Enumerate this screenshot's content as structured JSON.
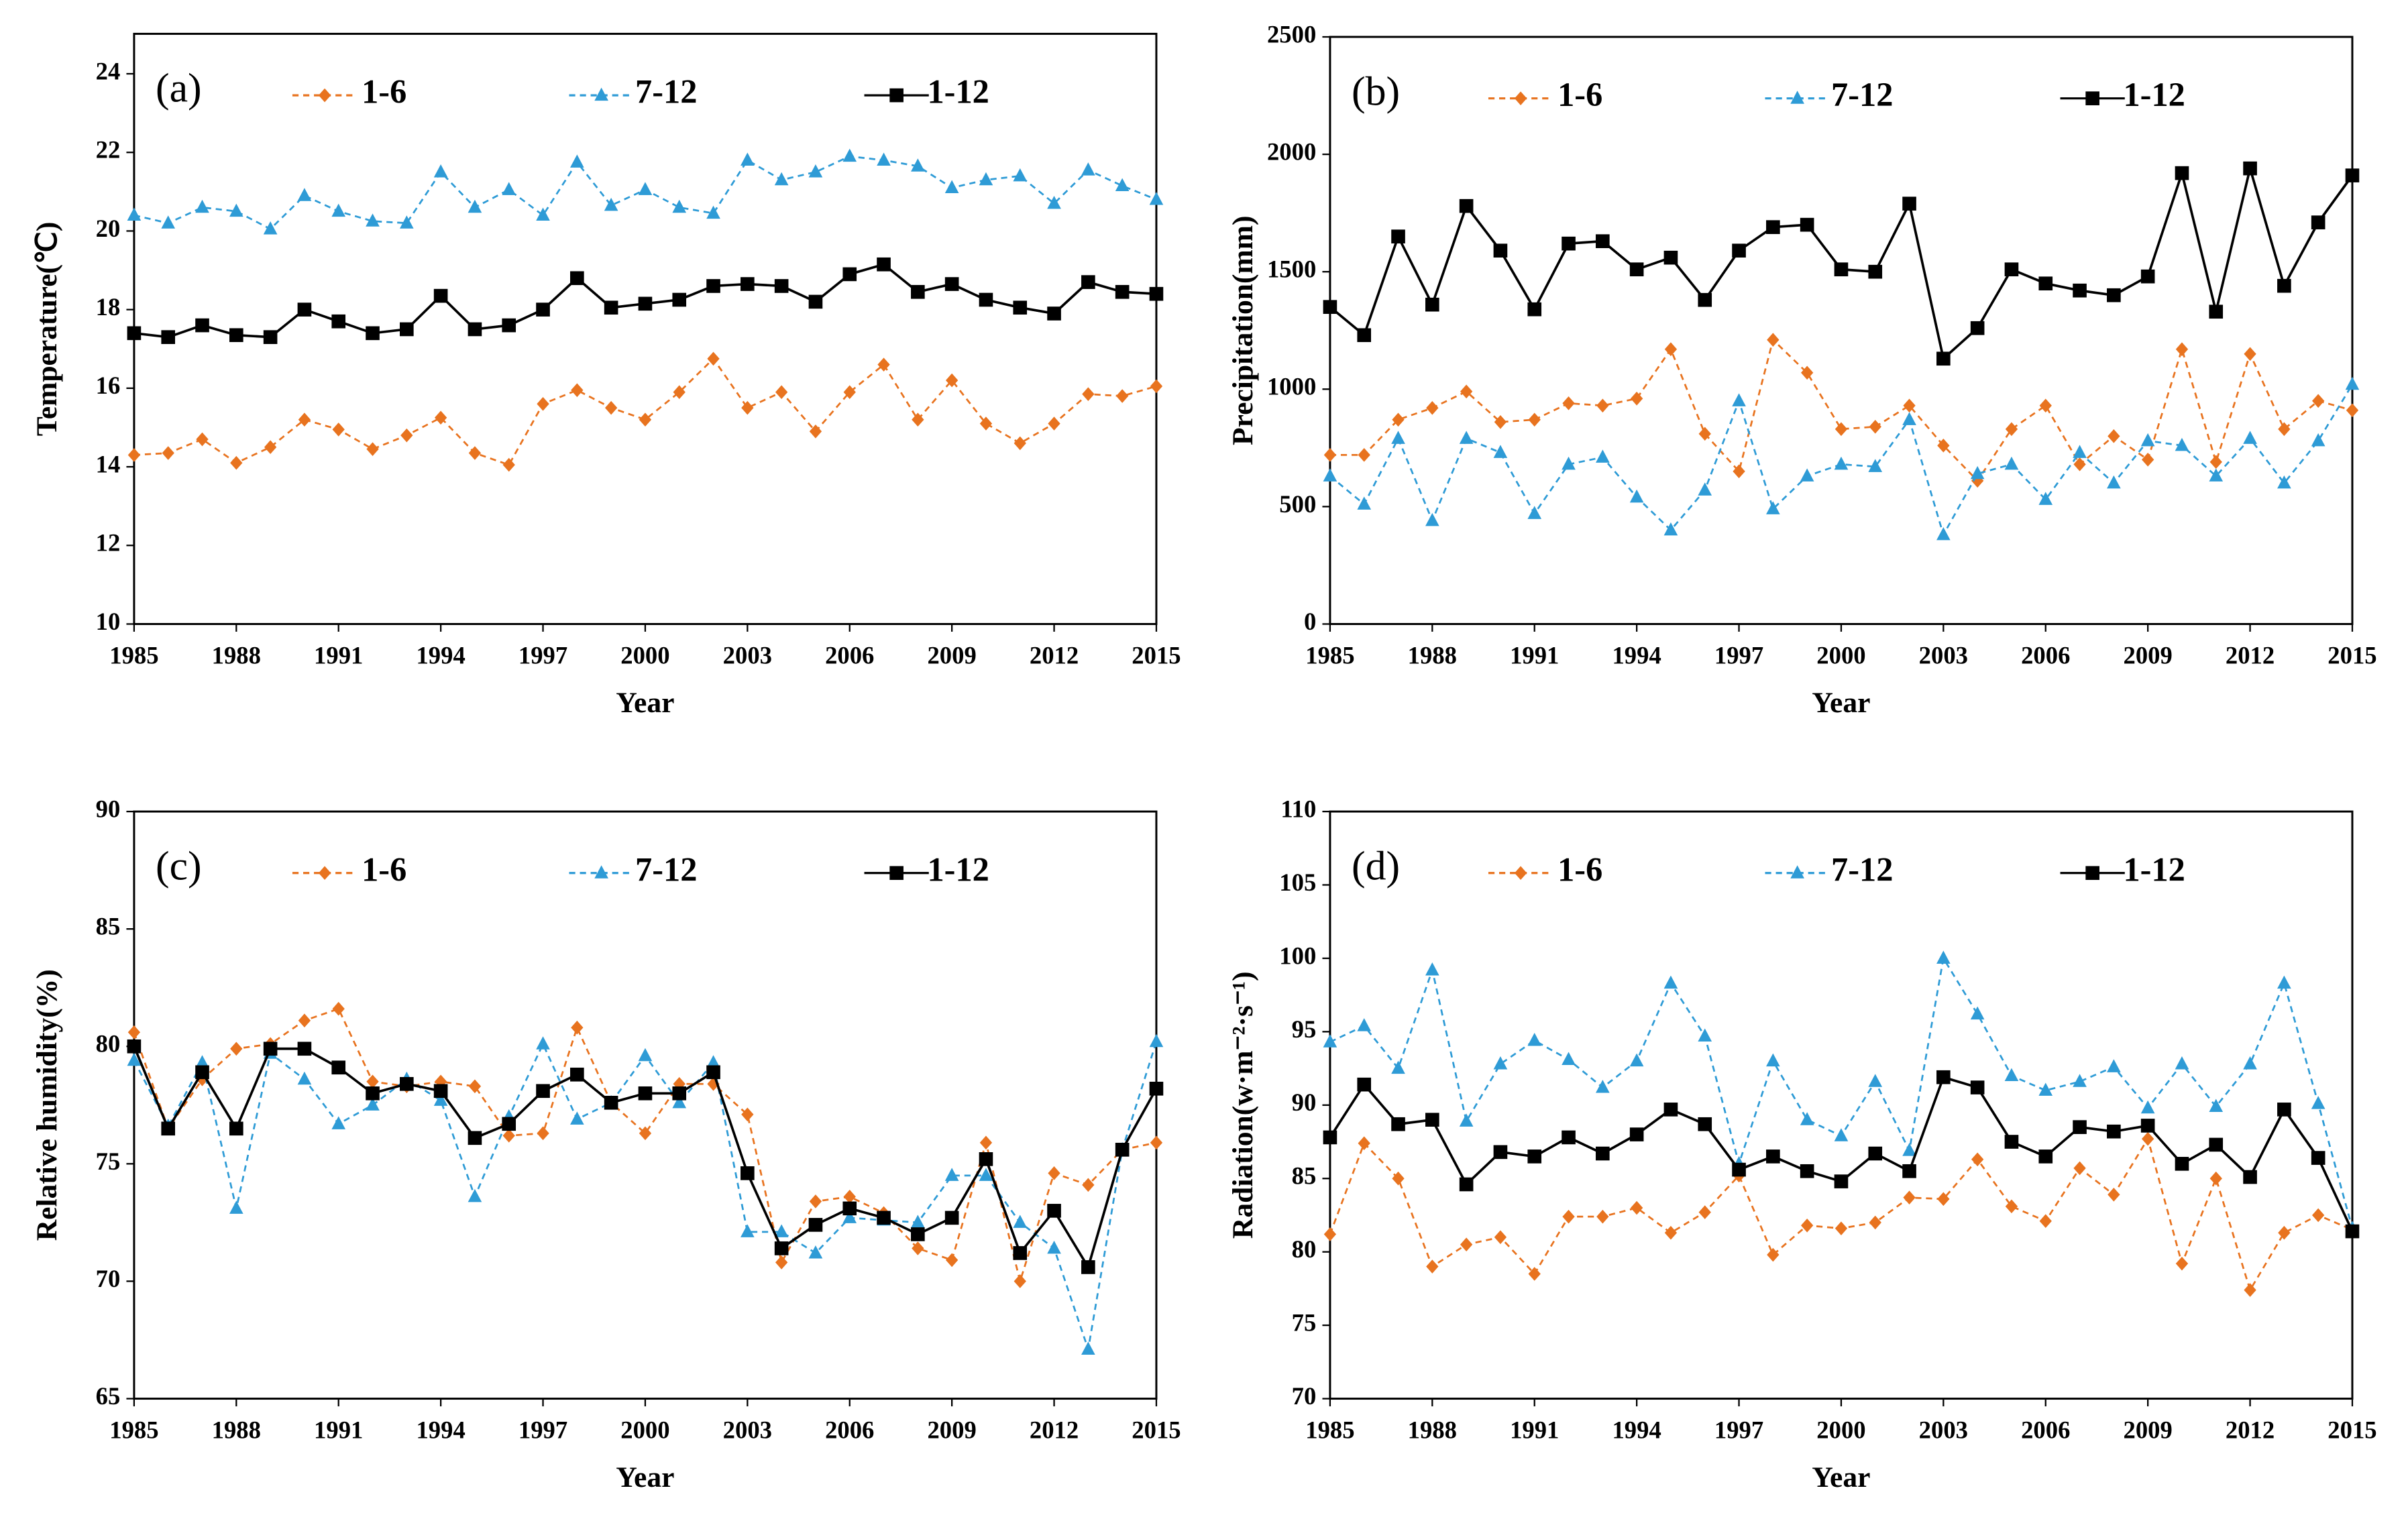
{
  "chart_data": [
    {
      "type": "line",
      "panel_label": "(a)",
      "xlabel": "Year",
      "ylabel": "Temperature(℃)",
      "x": [
        1985,
        1986,
        1987,
        1988,
        1989,
        1990,
        1991,
        1992,
        1993,
        1994,
        1995,
        1996,
        1997,
        1998,
        1999,
        2000,
        2001,
        2002,
        2003,
        2004,
        2005,
        2006,
        2007,
        2008,
        2009,
        2010,
        2011,
        2012,
        2013,
        2014,
        2015
      ],
      "xlim": [
        1985,
        2015
      ],
      "xticks": [
        1985,
        1988,
        1991,
        1994,
        1997,
        2000,
        2003,
        2006,
        2009,
        2012,
        2015
      ],
      "ylim": [
        10,
        24
      ],
      "yticks": [
        10,
        12,
        14,
        16,
        18,
        20,
        22,
        24
      ],
      "series": [
        {
          "name": "1-6",
          "color": "#e8731f",
          "marker": "diamond",
          "dashed": true,
          "values": [
            14.3,
            14.35,
            14.7,
            14.1,
            14.5,
            15.2,
            14.95,
            14.45,
            14.8,
            15.25,
            14.35,
            14.05,
            15.6,
            15.95,
            15.5,
            15.2,
            15.9,
            16.75,
            15.5,
            15.9,
            14.9,
            15.9,
            16.6,
            15.2,
            16.2,
            15.1,
            14.6,
            15.1,
            15.85,
            15.8,
            16.05
          ]
        },
        {
          "name": "7-12",
          "color": "#2e9bd6",
          "marker": "triangle",
          "dashed": true,
          "values": [
            20.4,
            20.2,
            20.6,
            20.5,
            20.05,
            20.9,
            20.5,
            20.25,
            20.2,
            21.5,
            20.6,
            21.05,
            20.4,
            21.75,
            20.65,
            21.05,
            20.6,
            20.45,
            21.8,
            21.3,
            21.5,
            21.9,
            21.8,
            21.65,
            21.1,
            21.3,
            21.4,
            20.7,
            21.55,
            21.15,
            20.8
          ]
        },
        {
          "name": "1-12",
          "color": "#000000",
          "marker": "square",
          "dashed": false,
          "values": [
            17.4,
            17.3,
            17.6,
            17.35,
            17.3,
            18.0,
            17.7,
            17.4,
            17.5,
            18.35,
            17.5,
            17.6,
            18.0,
            18.8,
            18.05,
            18.15,
            18.25,
            18.6,
            18.65,
            18.6,
            18.2,
            18.9,
            19.15,
            18.45,
            18.65,
            18.25,
            18.05,
            17.9,
            18.7,
            18.45,
            18.4
          ]
        }
      ]
    },
    {
      "type": "line",
      "panel_label": "(b)",
      "xlabel": "Year",
      "ylabel": "Precipitation(mm)",
      "x": [
        1985,
        1986,
        1987,
        1988,
        1989,
        1990,
        1991,
        1992,
        1993,
        1994,
        1995,
        1996,
        1997,
        1998,
        1999,
        2000,
        2001,
        2002,
        2003,
        2004,
        2005,
        2006,
        2007,
        2008,
        2009,
        2010,
        2011,
        2012,
        2013,
        2014,
        2015
      ],
      "xlim": [
        1985,
        2015
      ],
      "xticks": [
        1985,
        1988,
        1991,
        1994,
        1997,
        2000,
        2003,
        2006,
        2009,
        2012,
        2015
      ],
      "ylim": [
        0,
        2500
      ],
      "yticks": [
        0,
        500,
        1000,
        1500,
        2000,
        2500
      ],
      "series": [
        {
          "name": "1-6",
          "color": "#e8731f",
          "marker": "diamond",
          "dashed": true,
          "values": [
            720,
            720,
            870,
            920,
            990,
            860,
            870,
            940,
            930,
            960,
            1170,
            810,
            650,
            1210,
            1070,
            830,
            840,
            930,
            760,
            610,
            830,
            930,
            680,
            800,
            700,
            1170,
            690,
            1150,
            830,
            950,
            910
          ]
        },
        {
          "name": "7-12",
          "color": "#2e9bd6",
          "marker": "triangle",
          "dashed": true,
          "values": [
            630,
            510,
            790,
            440,
            790,
            730,
            470,
            680,
            710,
            540,
            400,
            570,
            950,
            490,
            630,
            680,
            670,
            870,
            380,
            640,
            680,
            530,
            730,
            600,
            780,
            760,
            630,
            790,
            600,
            780,
            1020
          ]
        },
        {
          "name": "1-12",
          "color": "#000000",
          "marker": "square",
          "dashed": false,
          "values": [
            1350,
            1230,
            1650,
            1360,
            1780,
            1590,
            1340,
            1620,
            1630,
            1510,
            1560,
            1380,
            1590,
            1690,
            1700,
            1510,
            1500,
            1790,
            1130,
            1260,
            1510,
            1450,
            1420,
            1400,
            1480,
            1920,
            1330,
            1940,
            1440,
            1710,
            1910
          ]
        }
      ]
    },
    {
      "type": "line",
      "panel_label": "(c)",
      "xlabel": "Year",
      "ylabel": "Relative humidity(%)",
      "x": [
        1985,
        1986,
        1987,
        1988,
        1989,
        1990,
        1991,
        1992,
        1993,
        1994,
        1995,
        1996,
        1997,
        1998,
        1999,
        2000,
        2001,
        2002,
        2003,
        2004,
        2005,
        2006,
        2007,
        2008,
        2009,
        2010,
        2011,
        2012,
        2013,
        2014,
        2015
      ],
      "xlim": [
        1985,
        2015
      ],
      "xticks": [
        1985,
        1988,
        1991,
        1994,
        1997,
        2000,
        2003,
        2006,
        2009,
        2012,
        2015
      ],
      "ylim": [
        65,
        90
      ],
      "yticks": [
        65,
        70,
        75,
        80,
        85,
        90
      ],
      "series": [
        {
          "name": "1-6",
          "color": "#e8731f",
          "marker": "diamond",
          "dashed": true,
          "values": [
            80.6,
            76.5,
            78.6,
            79.9,
            80.1,
            81.1,
            81.6,
            78.5,
            78.3,
            78.5,
            78.3,
            76.2,
            76.3,
            80.8,
            77.6,
            76.3,
            78.4,
            78.4,
            77.1,
            70.8,
            73.4,
            73.6,
            72.9,
            71.4,
            70.9,
            75.9,
            70.0,
            74.6,
            74.1,
            75.6,
            75.9
          ]
        },
        {
          "name": "7-12",
          "color": "#2e9bd6",
          "marker": "triangle",
          "dashed": true,
          "values": [
            79.4,
            76.6,
            79.3,
            73.1,
            79.7,
            78.6,
            76.7,
            77.5,
            78.6,
            77.7,
            73.6,
            77.0,
            80.1,
            76.9,
            77.6,
            79.6,
            77.6,
            79.3,
            72.1,
            72.1,
            71.2,
            72.7,
            72.6,
            72.5,
            74.5,
            74.5,
            72.5,
            71.4,
            67.1,
            75.6,
            80.2
          ]
        },
        {
          "name": "1-12",
          "color": "#000000",
          "marker": "square",
          "dashed": false,
          "values": [
            80.0,
            76.5,
            78.9,
            76.5,
            79.9,
            79.9,
            79.1,
            78.0,
            78.4,
            78.1,
            76.1,
            76.7,
            78.1,
            78.8,
            77.6,
            78.0,
            78.0,
            78.9,
            74.6,
            71.4,
            72.4,
            73.1,
            72.7,
            72.0,
            72.7,
            75.2,
            71.2,
            73.0,
            70.6,
            75.6,
            78.2
          ]
        }
      ]
    },
    {
      "type": "line",
      "panel_label": "(d)",
      "xlabel": "Year",
      "ylabel": "Radiation(w·m⁻²·s⁻¹)",
      "x": [
        1985,
        1986,
        1987,
        1988,
        1989,
        1990,
        1991,
        1992,
        1993,
        1994,
        1995,
        1996,
        1997,
        1998,
        1999,
        2000,
        2001,
        2002,
        2003,
        2004,
        2005,
        2006,
        2007,
        2008,
        2009,
        2010,
        2011,
        2012,
        2013,
        2014,
        2015
      ],
      "xlim": [
        1985,
        2015
      ],
      "xticks": [
        1985,
        1988,
        1991,
        1994,
        1997,
        2000,
        2003,
        2006,
        2009,
        2012,
        2015
      ],
      "ylim": [
        70,
        110
      ],
      "yticks": [
        70,
        75,
        80,
        85,
        90,
        95,
        100,
        105,
        110
      ],
      "series": [
        {
          "name": "1-6",
          "color": "#e8731f",
          "marker": "diamond",
          "dashed": true,
          "values": [
            81.2,
            87.4,
            85.0,
            79.0,
            80.5,
            81.0,
            78.5,
            82.4,
            82.4,
            83.0,
            81.3,
            82.7,
            85.2,
            79.8,
            81.8,
            81.6,
            82.0,
            83.7,
            83.6,
            86.3,
            83.1,
            82.1,
            85.7,
            83.9,
            87.7,
            79.2,
            85.0,
            77.4,
            81.3,
            82.5,
            81.5
          ]
        },
        {
          "name": "7-12",
          "color": "#2e9bd6",
          "marker": "triangle",
          "dashed": true,
          "values": [
            94.3,
            95.4,
            92.5,
            99.2,
            88.9,
            92.8,
            94.4,
            93.1,
            91.2,
            93.0,
            98.3,
            94.7,
            86.0,
            93.0,
            89.0,
            87.9,
            91.6,
            86.9,
            100.0,
            96.2,
            92.0,
            91.0,
            91.6,
            92.6,
            89.8,
            92.8,
            89.9,
            92.8,
            98.3,
            90.1,
            81.6
          ]
        },
        {
          "name": "1-12",
          "color": "#000000",
          "marker": "square",
          "dashed": false,
          "values": [
            87.8,
            91.4,
            88.7,
            89.0,
            84.6,
            86.8,
            86.5,
            87.8,
            86.7,
            88.0,
            89.7,
            88.7,
            85.6,
            86.5,
            85.5,
            84.8,
            86.7,
            85.5,
            91.9,
            91.2,
            87.5,
            86.5,
            88.5,
            88.2,
            88.6,
            86.0,
            87.3,
            85.1,
            89.7,
            86.4,
            81.4
          ]
        }
      ]
    }
  ]
}
